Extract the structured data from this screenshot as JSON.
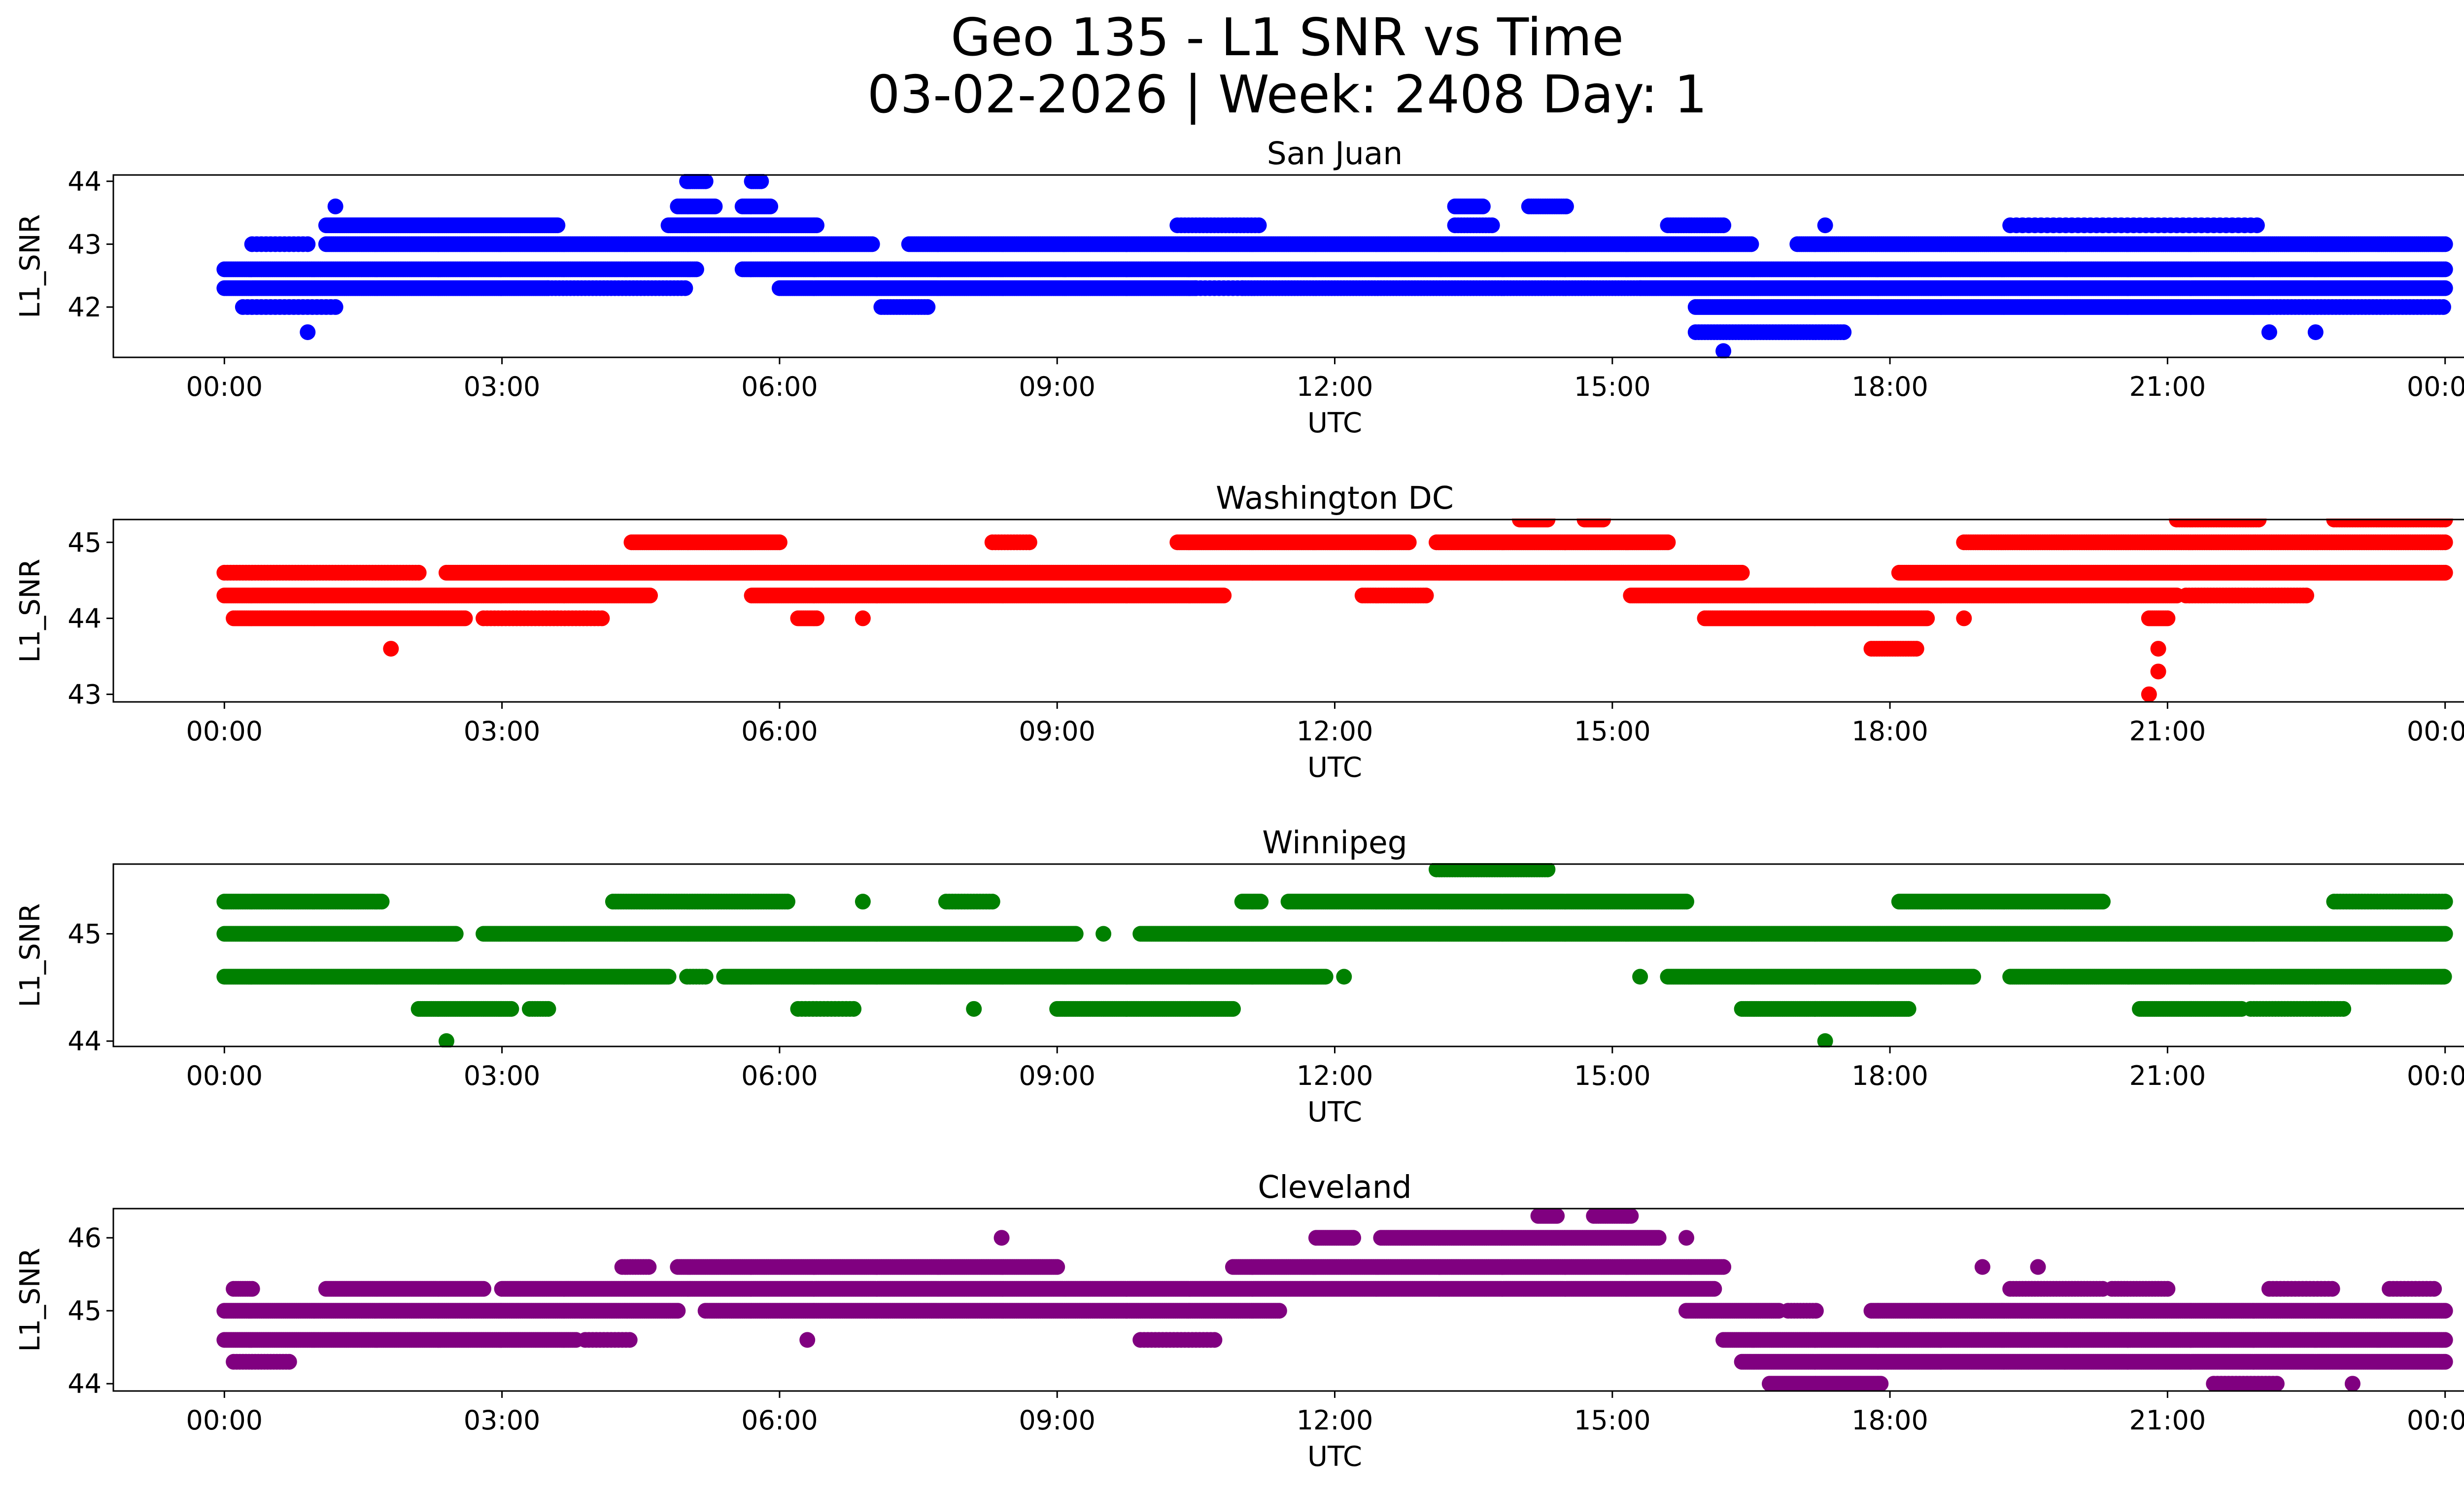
{
  "chart_data": {
    "type": "scatter",
    "title_line1": "Geo 135 - L1 SNR vs Time",
    "title_line2": "03-02-2026 | Week: 2408 Day: 1",
    "xlabel": "UTC",
    "ylabel": "L1_SNR",
    "x_ticks": [
      "00:00",
      "03:00",
      "06:00",
      "09:00",
      "12:00",
      "15:00",
      "18:00",
      "21:00",
      "00:00"
    ],
    "x_range_hours": [
      -1.2,
      25.2
    ],
    "marker": "filled circle",
    "grid": false,
    "panels": [
      {
        "name": "San Juan",
        "color": "#0000ff",
        "ylim": [
          41.2,
          44.1
        ],
        "yticks": [
          42,
          43,
          44
        ],
        "bands": [
          {
            "y": 42.3,
            "segments": [
              [
                0,
                3.5
              ],
              [
                3.5,
                5.0,
                0.5
              ],
              [
                6.0,
                10.5
              ],
              [
                10.5,
                11.0,
                0.4
              ],
              [
                11.0,
                15.3,
                0.6
              ],
              [
                15.3,
                24.0
              ]
            ]
          },
          {
            "y": 42.6,
            "segments": [
              [
                0,
                5.1
              ],
              [
                5.6,
                24.0
              ]
            ]
          },
          {
            "y": 43.0,
            "segments": [
              [
                0.3,
                0.9,
                0.4
              ],
              [
                1.1,
                7.0
              ],
              [
                7.4,
                16.5
              ],
              [
                17.0,
                24.0,
                0.9
              ]
            ]
          },
          {
            "y": 42.0,
            "segments": [
              [
                0.2,
                1.2,
                0.4
              ],
              [
                7.1,
                7.6,
                0.6
              ],
              [
                15.9,
                22.1
              ],
              [
                22.1,
                24.0,
                0.5
              ]
            ]
          },
          {
            "y": 43.3,
            "segments": [
              [
                1.1,
                3.6
              ],
              [
                4.8,
                6.4
              ],
              [
                10.3,
                11.2,
                0.5
              ],
              [
                13.3,
                13.7,
                0.6
              ],
              [
                15.6,
                16.2,
                0.7
              ],
              [
                17.3,
                17.3,
                1.0
              ],
              [
                19.3,
                22.0,
                0.3
              ]
            ]
          },
          {
            "y": 43.6,
            "segments": [
              [
                1.2,
                1.2,
                1.0
              ],
              [
                4.9,
                5.3
              ],
              [
                5.6,
                5.9
              ],
              [
                13.3,
                13.6
              ],
              [
                14.1,
                14.5,
                0.8
              ]
            ]
          },
          {
            "y": 44.0,
            "segments": [
              [
                5.0,
                5.2
              ],
              [
                5.7,
                5.8
              ]
            ]
          },
          {
            "y": 41.6,
            "segments": [
              [
                0.9,
                0.9,
                1.0
              ],
              [
                15.9,
                17.5,
                0.6
              ],
              [
                22.1,
                22.1,
                1.0
              ],
              [
                22.6,
                22.6,
                1.0
              ]
            ]
          },
          {
            "y": 41.3,
            "segments": [
              [
                16.2,
                16.2,
                1.0
              ]
            ]
          }
        ]
      },
      {
        "name": "Washington DC",
        "color": "#ff0000",
        "ylim": [
          42.9,
          45.3
        ],
        "yticks": [
          43,
          44,
          45
        ],
        "bands": [
          {
            "y": 44.6,
            "segments": [
              [
                0,
                2.1,
                0.6
              ],
              [
                2.4,
                16.4
              ],
              [
                18.1,
                24.0
              ]
            ]
          },
          {
            "y": 44.3,
            "segments": [
              [
                0,
                4.6
              ],
              [
                5.7,
                10.8
              ],
              [
                12.3,
                13.0,
                0.7
              ],
              [
                15.2,
                21.1
              ],
              [
                21.2,
                22.5,
                0.6
              ]
            ]
          },
          {
            "y": 45.0,
            "segments": [
              [
                4.4,
                6.0
              ],
              [
                8.3,
                8.7,
                0.6
              ],
              [
                10.3,
                12.8
              ],
              [
                13.1,
                15.6
              ],
              [
                18.8,
                24.0,
                0.8
              ]
            ]
          },
          {
            "y": 44.0,
            "segments": [
              [
                0.1,
                2.6
              ],
              [
                2.8,
                4.1,
                0.5
              ],
              [
                6.2,
                6.4
              ],
              [
                6.9,
                6.9,
                1.0
              ],
              [
                16.0,
                18.4
              ],
              [
                18.8,
                18.8,
                1.0
              ],
              [
                20.8,
                21.0
              ]
            ]
          },
          {
            "y": 45.3,
            "segments": [
              [
                14.0,
                14.3
              ],
              [
                14.7,
                14.9
              ],
              [
                21.1,
                22.0,
                0.7
              ],
              [
                22.8,
                24.0,
                0.7
              ]
            ]
          },
          {
            "y": 43.6,
            "segments": [
              [
                1.8,
                1.8,
                1.0
              ],
              [
                17.8,
                18.3,
                0.7
              ],
              [
                20.9,
                20.9,
                1.0
              ]
            ]
          },
          {
            "y": 43.3,
            "segments": [
              [
                20.9,
                20.9,
                1.0
              ]
            ]
          },
          {
            "y": 43.0,
            "segments": [
              [
                20.8,
                20.8,
                1.0
              ]
            ]
          }
        ]
      },
      {
        "name": "Winnipeg",
        "color": "#008000",
        "ylim": [
          43.95,
          45.65
        ],
        "yticks": [
          44,
          45
        ],
        "bands": [
          {
            "y": 45.0,
            "segments": [
              [
                0,
                2.5
              ],
              [
                2.8,
                9.2
              ],
              [
                9.5,
                9.5,
                1.0
              ],
              [
                9.9,
                24.0
              ]
            ]
          },
          {
            "y": 44.6,
            "segments": [
              [
                0,
                4.8
              ],
              [
                5.0,
                5.2,
                0.6
              ],
              [
                5.4,
                11.9
              ],
              [
                12.1,
                12.1,
                1.0
              ],
              [
                15.3,
                15.3,
                1.0
              ],
              [
                15.6,
                18.9
              ],
              [
                19.3,
                24.0,
                0.9
              ]
            ]
          },
          {
            "y": 45.3,
            "segments": [
              [
                0,
                1.7,
                0.8
              ],
              [
                4.2,
                6.1,
                0.7
              ],
              [
                6.9,
                6.9,
                1.0
              ],
              [
                7.8,
                8.3,
                0.6
              ],
              [
                11.0,
                11.2
              ],
              [
                11.5,
                15.8
              ],
              [
                18.1,
                20.3
              ],
              [
                22.8,
                24.0,
                0.6
              ]
            ]
          },
          {
            "y": 44.3,
            "segments": [
              [
                2.1,
                3.1
              ],
              [
                3.3,
                3.5,
                0.7
              ],
              [
                6.2,
                6.8,
                0.5
              ],
              [
                8.1,
                8.1,
                1.0
              ],
              [
                9.0,
                10.9
              ],
              [
                16.4,
                18.2
              ],
              [
                20.7,
                21.8
              ],
              [
                21.9,
                22.9,
                0.6
              ]
            ]
          },
          {
            "y": 45.6,
            "segments": [
              [
                13.1,
                14.3,
                0.7
              ]
            ]
          },
          {
            "y": 44.0,
            "segments": [
              [
                2.4,
                2.4,
                1.0
              ],
              [
                17.3,
                17.3,
                1.0
              ]
            ]
          }
        ]
      },
      {
        "name": "Cleveland",
        "color": "#800080",
        "ylim": [
          43.9,
          46.4
        ],
        "yticks": [
          44,
          45,
          46
        ],
        "bands": [
          {
            "y": 45.0,
            "segments": [
              [
                0,
                4.9
              ],
              [
                5.2,
                11.4
              ],
              [
                15.8,
                16.8
              ],
              [
                16.9,
                17.2,
                0.6
              ],
              [
                17.8,
                24.0
              ]
            ]
          },
          {
            "y": 44.6,
            "segments": [
              [
                0,
                3.8
              ],
              [
                3.9,
                4.4,
                0.5
              ],
              [
                6.3,
                6.3,
                1.0
              ],
              [
                9.9,
                10.7,
                0.5
              ],
              [
                16.2,
                24.0
              ]
            ]
          },
          {
            "y": 45.3,
            "segments": [
              [
                0.1,
                0.3,
                0.8
              ],
              [
                1.1,
                2.8
              ],
              [
                3.0,
                16.1
              ],
              [
                19.3,
                20.3,
                0.6
              ],
              [
                20.4,
                21.0,
                0.6
              ],
              [
                22.1,
                22.8,
                0.5
              ],
              [
                23.4,
                23.9,
                0.5
              ]
            ]
          },
          {
            "y": 45.6,
            "segments": [
              [
                4.3,
                4.6,
                0.7
              ],
              [
                4.9,
                9.0
              ],
              [
                10.9,
                16.2
              ],
              [
                19.0,
                19.0,
                1.0
              ],
              [
                19.6,
                19.6,
                1.0
              ]
            ]
          },
          {
            "y": 44.3,
            "segments": [
              [
                0.1,
                0.7,
                0.6
              ],
              [
                16.4,
                24.0
              ]
            ]
          },
          {
            "y": 46.0,
            "segments": [
              [
                8.4,
                8.4,
                1.0
              ],
              [
                11.8,
                12.2
              ],
              [
                12.5,
                15.5
              ],
              [
                15.8,
                15.8,
                1.0
              ]
            ]
          },
          {
            "y": 44.0,
            "segments": [
              [
                16.7,
                17.9
              ],
              [
                21.5,
                22.2,
                0.5
              ],
              [
                23.0,
                23.0,
                1.0
              ]
            ]
          },
          {
            "y": 46.3,
            "segments": [
              [
                14.2,
                14.4
              ],
              [
                14.8,
                15.2,
                0.8
              ]
            ]
          }
        ]
      }
    ]
  }
}
